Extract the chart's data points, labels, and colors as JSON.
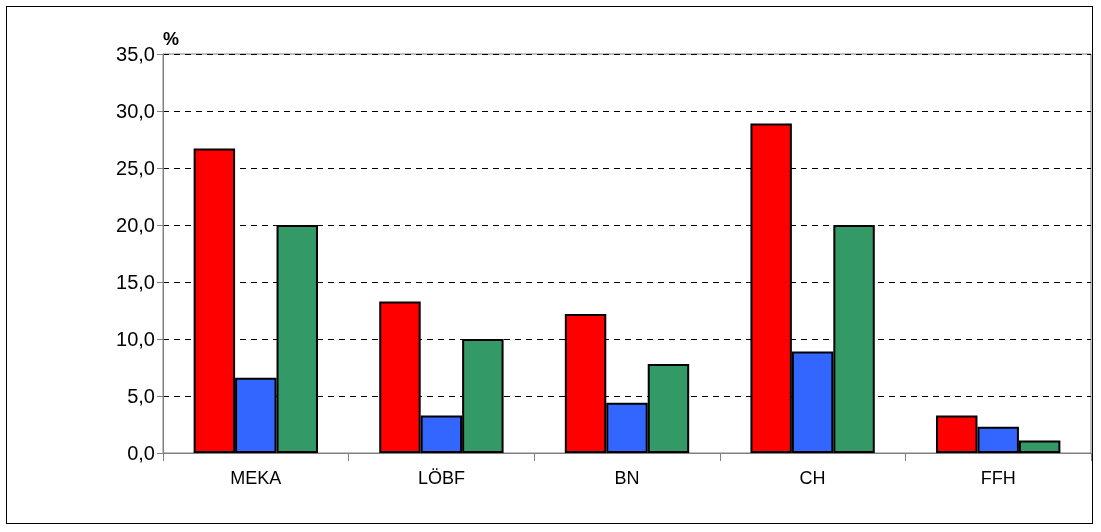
{
  "chart_data": {
    "type": "bar",
    "ylabel": "%",
    "categories": [
      "MEKA",
      "LÖBF",
      "BN",
      "CH",
      "FFH"
    ],
    "series": [
      {
        "color": "#ff0000",
        "values": [
          26.7,
          13.3,
          12.2,
          28.9,
          3.3
        ]
      },
      {
        "color": "#3366ff",
        "values": [
          6.6,
          3.3,
          4.4,
          8.9,
          2.3
        ]
      },
      {
        "color": "#339966",
        "values": [
          20.0,
          10.0,
          7.8,
          20.0,
          1.1
        ]
      }
    ],
    "ylim": [
      0,
      35
    ],
    "yticks": [
      {
        "value": 0,
        "label": "0,0"
      },
      {
        "value": 5,
        "label": "5,0"
      },
      {
        "value": 10,
        "label": "10,0"
      },
      {
        "value": 15,
        "label": "15,0"
      },
      {
        "value": 20,
        "label": "20,0"
      },
      {
        "value": 25,
        "label": "25,0"
      },
      {
        "value": 30,
        "label": "30,0"
      },
      {
        "value": 35,
        "label": "35,0"
      }
    ],
    "grid": "y"
  }
}
